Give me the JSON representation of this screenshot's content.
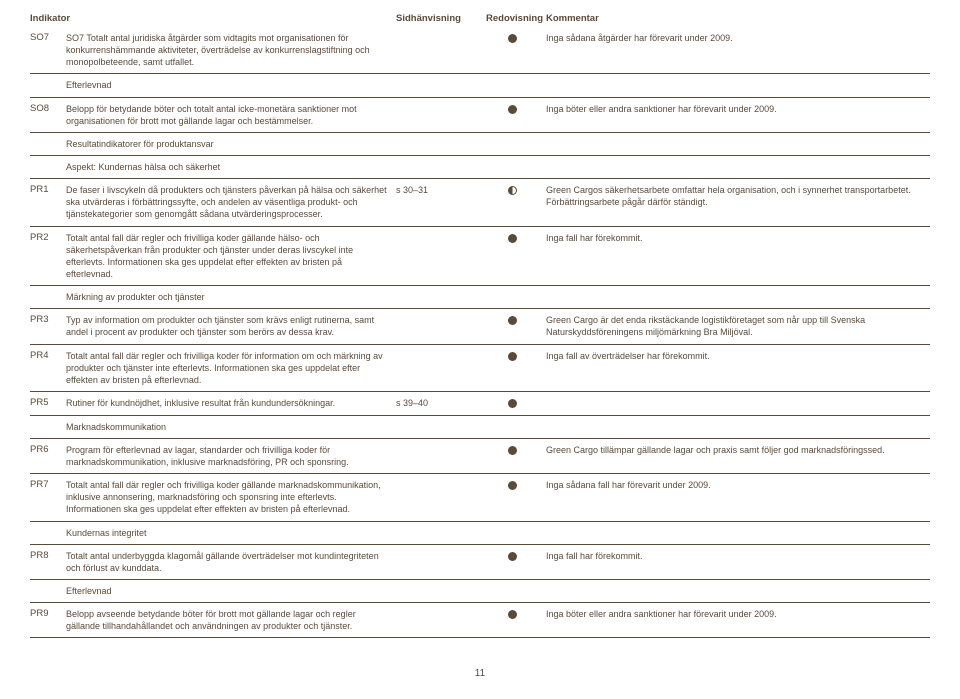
{
  "headers": {
    "indikator": "Indikator",
    "sid": "Sidhänvisning",
    "redo": "Redovisning",
    "komm": "Kommentar"
  },
  "rows": [
    {
      "code": "SO7",
      "ind": "SO7 Totalt antal juridiska åtgärder som vidtagits mot organisationen för konkurrenshämmande aktiviteter, överträdelse av konkurrenslagstiftning och monopolbeteende, samt utfallet.",
      "page": "",
      "redo": "full",
      "komm": "Inga sådana åtgärder har förevarit under 2009."
    },
    {
      "section": true,
      "label": "Efterlevnad"
    },
    {
      "code": "SO8",
      "ind": "Belopp för betydande böter och totalt antal icke-monetära sanktioner mot organisationen för brott mot gällande lagar och bestämmelser.",
      "page": "",
      "redo": "full",
      "komm": "Inga böter eller andra sanktioner har förevarit under 2009."
    },
    {
      "section": true,
      "label": "Resultatindikatorer för produktansvar"
    },
    {
      "section": true,
      "label": "Aspekt: Kundernas hälsa och säkerhet"
    },
    {
      "code": "PR1",
      "ind": "De faser i livscykeln då produkters och tjänsters påverkan på hälsa och säkerhet ska utvärderas i förbättringssyfte, och andelen av väsentliga produkt- och tjänstekategorier som genomgått sådana utvärderingsprocesser.",
      "page": "s 30–31",
      "redo": "half",
      "komm": "Green Cargos säkerhetsarbete omfattar hela organisation, och i synnerhet transportarbetet. Förbättringsarbete pågår därför ständigt."
    },
    {
      "code": "PR2",
      "ind": "Totalt antal fall där regler och frivilliga koder gällande hälso- och säkerhetspåverkan från produkter och tjänster under deras livscykel inte efterlevts. Informationen ska ges uppdelat efter effekten av bristen på efterlevnad.",
      "page": "",
      "redo": "full",
      "komm": "Inga fall har förekommit."
    },
    {
      "section": true,
      "label": "Märkning av produkter och tjänster"
    },
    {
      "code": "PR3",
      "ind": "Typ av information om produkter och tjänster som krävs enligt rutinerna, samt andel i procent av produkter och tjänster som berörs av dessa krav.",
      "page": "",
      "redo": "full",
      "komm": "Green Cargo är det enda rikstäckande logistikföretaget som når upp till Svenska Naturskyddsföreningens miljömärkning Bra Miljöval."
    },
    {
      "code": "PR4",
      "ind": "Totalt antal fall där regler och frivilliga koder för information om och märkning av produkter och tjänster inte efterlevts. Informationen ska ges uppdelat efter effekten av bristen på efterlevnad.",
      "page": "",
      "redo": "full",
      "komm": "Inga fall av överträdelser har förekommit."
    },
    {
      "code": "PR5",
      "ind": "Rutiner för kundnöjdhet, inklusive resultat från kundundersökningar.",
      "page": "s 39–40",
      "redo": "full",
      "komm": ""
    },
    {
      "section": true,
      "label": "Marknadskommunikation"
    },
    {
      "code": "PR6",
      "ind": "Program för efterlevnad av lagar, standarder och frivilliga koder för marknadskommunikation, inklusive marknadsföring, PR och sponsring.",
      "page": "",
      "redo": "full",
      "komm": "Green Cargo tillämpar gällande lagar och praxis samt följer god marknadsföringssed."
    },
    {
      "code": "PR7",
      "ind": "Totalt antal fall där regler och frivilliga koder gällande marknadskommunikation, inklusive annonsering, marknadsföring och sponsring inte efterlevts. Informationen ska ges uppdelat efter effekten av bristen på efterlevnad.",
      "page": "",
      "redo": "full",
      "komm": "Inga sådana fall har förevarit under 2009."
    },
    {
      "section": true,
      "label": "Kundernas integritet"
    },
    {
      "code": "PR8",
      "ind": "Totalt antal underbyggda klagomål gällande överträdelser mot kundintegriteten och förlust av kunddata.",
      "page": "",
      "redo": "full",
      "komm": "Inga fall har förekommit."
    },
    {
      "section": true,
      "label": "Efterlevnad"
    },
    {
      "code": "PR9",
      "ind": "Belopp avseende betydande böter för brott mot gällande lagar och regler gällande tillhandahållandet och användningen av produkter och tjänster.",
      "page": "",
      "redo": "full",
      "komm": "Inga böter eller andra sanktioner har förevarit under 2009."
    }
  ],
  "pageNumber": "11"
}
